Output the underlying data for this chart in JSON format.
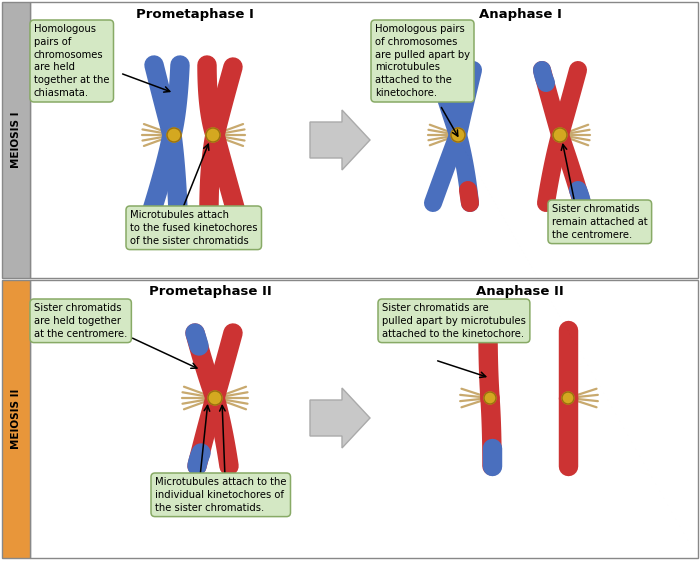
{
  "meiosis_I_label": "MEIOSIS I",
  "meiosis_II_label": "MEIOSIS II",
  "prometaphase_I_title": "Prometaphase I",
  "anaphase_I_title": "Anaphase I",
  "prometaphase_II_title": "Prometaphase II",
  "anaphase_II_title": "Anaphase II",
  "colors": {
    "blue_chrom": "#4a6fbe",
    "red_chrom": "#cc3333",
    "centromere": "#d4a820",
    "microtubule": "#c8a96e",
    "sidebar_gray": "#b0b0b0",
    "sidebar_orange": "#e8963a",
    "box_fill": "#d4e8c4",
    "box_edge": "#88aa66",
    "border": "#888888",
    "arrow_fill": "#c8c8c8",
    "arrow_edge": "#aaaaaa"
  },
  "annotations": {
    "box1": "Homologous\npairs of\nchromosomes\nare held\ntogether at the\nchiasmata.",
    "box2": "Microtubules attach\nto the fused kinetochores\nof the sister chromatids",
    "box3": "Homologous pairs\nof chromosomes\nare pulled apart by\nmicrotubules\nattached to the\nkinetochore.",
    "box4": "Sister chromatids\nremain attached at\nthe centromere.",
    "box5": "Sister chromatids\nare held together\nat the centromere.",
    "box6": "Microtubules attach to the\nindividual kinetochores of\nthe sister chromatids.",
    "box7": "Sister chromatids are\npulled apart by microtubules\nattached to the kinetochore."
  }
}
